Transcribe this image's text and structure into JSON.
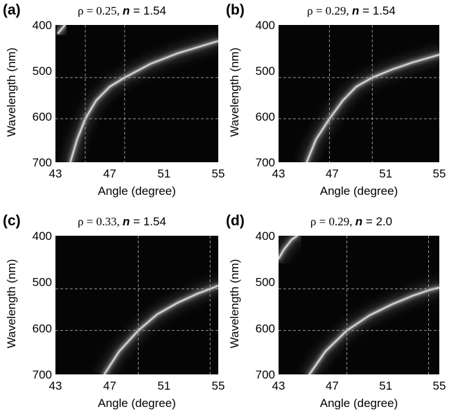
{
  "chart_data": [
    {
      "type": "heatmap",
      "panel": "(a)",
      "title_rho": "ρ = 0.25, ",
      "title_n": "n",
      "title_val": " = 1.54",
      "xlabel": "Angle (degree)",
      "ylabel": "Wavelength (nm)",
      "xlim": [
        43,
        55
      ],
      "ylim": [
        700,
        400
      ],
      "xticks": [
        "43",
        "47",
        "51",
        "55"
      ],
      "yticks": [
        "400",
        "500",
        "600",
        "700"
      ],
      "grid_x": [
        45.2,
        48.1
      ],
      "grid_y": [
        515,
        605
      ],
      "curves": [
        {
          "name": "main",
          "points": [
            [
              44.1,
              700
            ],
            [
              44.6,
              650
            ],
            [
              45.2,
              605
            ],
            [
              46.0,
              565
            ],
            [
              47.0,
              535
            ],
            [
              48.1,
              515
            ],
            [
              50.0,
              485
            ],
            [
              52.0,
              462
            ],
            [
              55.0,
              435
            ]
          ]
        },
        {
          "name": "corner",
          "points": [
            [
              43.2,
              418
            ],
            [
              43.7,
              400
            ]
          ]
        }
      ]
    },
    {
      "type": "heatmap",
      "panel": "(b)",
      "title_rho": "ρ = 0.29, ",
      "title_n": "n",
      "title_val": " = 1.54",
      "xlabel": "Angle (degree)",
      "ylabel": "Wavelength (nm)",
      "xlim": [
        43,
        55
      ],
      "ylim": [
        700,
        400
      ],
      "xticks": [
        "43",
        "47",
        "51",
        "55"
      ],
      "yticks": [
        "400",
        "500",
        "600",
        "700"
      ],
      "grid_x": [
        46.8,
        50.0
      ],
      "grid_y": [
        515,
        605
      ],
      "curves": [
        {
          "name": "main",
          "points": [
            [
              45.1,
              700
            ],
            [
              45.8,
              650
            ],
            [
              46.8,
              605
            ],
            [
              47.8,
              565
            ],
            [
              48.8,
              535
            ],
            [
              50.0,
              515
            ],
            [
              51.5,
              497
            ],
            [
              53.0,
              482
            ],
            [
              55.0,
              465
            ]
          ]
        }
      ]
    },
    {
      "type": "heatmap",
      "panel": "(c)",
      "title_rho": "ρ = 0.33, ",
      "title_n": "n",
      "title_val": " = 1.54",
      "xlabel": "Angle (degree)",
      "ylabel": "Wavelength (nm)",
      "xlim": [
        43,
        55
      ],
      "ylim": [
        700,
        400
      ],
      "xticks": [
        "43",
        "47",
        "51",
        "55"
      ],
      "yticks": [
        "400",
        "500",
        "600",
        "700"
      ],
      "grid_x": [
        49.1,
        54.4
      ],
      "grid_y": [
        515,
        605
      ],
      "curves": [
        {
          "name": "main",
          "points": [
            [
              46.6,
              700
            ],
            [
              47.7,
              650
            ],
            [
              49.1,
              605
            ],
            [
              50.5,
              570
            ],
            [
              52.0,
              545
            ],
            [
              53.5,
              525
            ],
            [
              54.4,
              515
            ],
            [
              55.0,
              508
            ]
          ]
        }
      ]
    },
    {
      "type": "heatmap",
      "panel": "(d)",
      "title_rho": "ρ = 0.29, ",
      "title_n": "n",
      "title_val": " = 2.0",
      "xlabel": "Angle (degree)",
      "ylabel": "Wavelength (nm)",
      "xlim": [
        43,
        55
      ],
      "ylim": [
        700,
        400
      ],
      "xticks": [
        "43",
        "47",
        "51",
        "55"
      ],
      "yticks": [
        "400",
        "500",
        "600",
        "700"
      ],
      "grid_x": [
        48.1,
        54.2
      ],
      "grid_y": [
        515,
        605
      ],
      "curves": [
        {
          "name": "main",
          "points": [
            [
              45.3,
              700
            ],
            [
              46.5,
              650
            ],
            [
              48.1,
              605
            ],
            [
              49.8,
              572
            ],
            [
              51.5,
              548
            ],
            [
              53.0,
              530
            ],
            [
              54.2,
              518
            ],
            [
              55.0,
              512
            ]
          ]
        },
        {
          "name": "corner",
          "points": [
            [
              43.0,
              450
            ],
            [
              43.4,
              430
            ],
            [
              44.0,
              408
            ],
            [
              44.4,
              400
            ]
          ]
        }
      ]
    }
  ]
}
